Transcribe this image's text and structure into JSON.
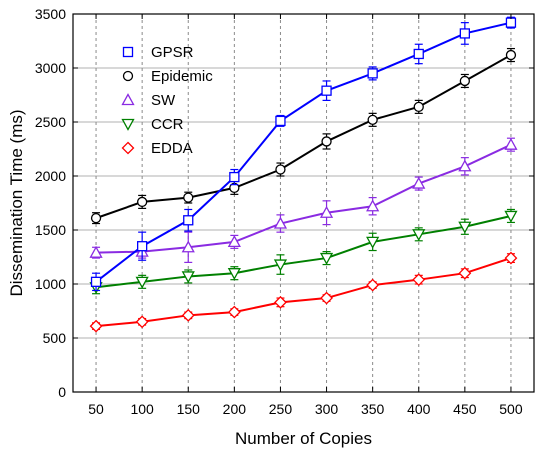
{
  "chart_data": {
    "type": "line",
    "xlabel": "Number of Copies",
    "ylabel": "Dissemination Time (ms)",
    "x": [
      50,
      100,
      150,
      200,
      250,
      300,
      350,
      400,
      450,
      500
    ],
    "xlim": [
      25,
      525
    ],
    "ylim": [
      0,
      3500
    ],
    "yticks": [
      0,
      500,
      1000,
      1500,
      2000,
      2500,
      3000,
      3500
    ],
    "grid": "vertical dashed at x ticks, horizontal solid at y ticks",
    "legend_position": "top-left",
    "series": [
      {
        "name": "GPSR",
        "color": "#0000ff",
        "marker": "square",
        "values": [
          1020,
          1350,
          1590,
          1990,
          2510,
          2790,
          2950,
          3130,
          3320,
          3420
        ],
        "errors": [
          80,
          130,
          100,
          70,
          50,
          90,
          60,
          90,
          100,
          50
        ]
      },
      {
        "name": "Epidemic",
        "color": "#000000",
        "marker": "circle",
        "values": [
          1610,
          1760,
          1800,
          1890,
          2060,
          2320,
          2520,
          2640,
          2880,
          3120
        ],
        "errors": [
          50,
          60,
          50,
          60,
          60,
          70,
          60,
          60,
          60,
          60
        ]
      },
      {
        "name": "SW",
        "color": "#8a2be2",
        "marker": "triangle-up",
        "values": [
          1290,
          1300,
          1340,
          1390,
          1560,
          1660,
          1720,
          1930,
          2090,
          2290
        ],
        "errors": [
          50,
          60,
          140,
          60,
          80,
          110,
          80,
          60,
          80,
          60
        ]
      },
      {
        "name": "CCR",
        "color": "#008000",
        "marker": "triangle-down",
        "values": [
          970,
          1020,
          1070,
          1100,
          1180,
          1240,
          1390,
          1460,
          1530,
          1630
        ],
        "errors": [
          60,
          60,
          60,
          60,
          90,
          60,
          80,
          60,
          70,
          60
        ]
      },
      {
        "name": "EDDA",
        "color": "#ff0000",
        "marker": "diamond",
        "values": [
          610,
          650,
          710,
          740,
          830,
          870,
          990,
          1040,
          1100,
          1240
        ],
        "errors": [
          30,
          30,
          30,
          30,
          40,
          30,
          30,
          40,
          40,
          40
        ]
      }
    ]
  }
}
